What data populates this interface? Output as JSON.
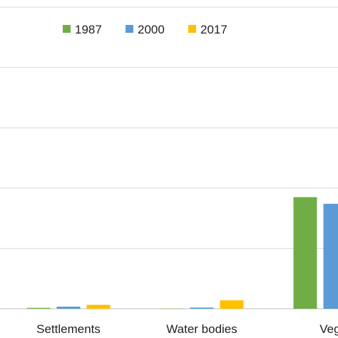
{
  "chart_data": {
    "type": "bar",
    "categories": [
      "Settlements",
      "Water bodies",
      "Veget"
    ],
    "series": [
      {
        "name": "1987",
        "color": "#70AD47",
        "values": [
          1.5,
          0.3,
          185
        ]
      },
      {
        "name": "2000",
        "color": "#5B9BD5",
        "values": [
          3.5,
          2.0,
          174
        ]
      },
      {
        "name": "2017",
        "color": "#FFC000",
        "values": [
          6.5,
          14.0,
          null
        ]
      }
    ],
    "ylim": [
      0,
      500
    ],
    "grid": true,
    "legend_position": "top"
  }
}
